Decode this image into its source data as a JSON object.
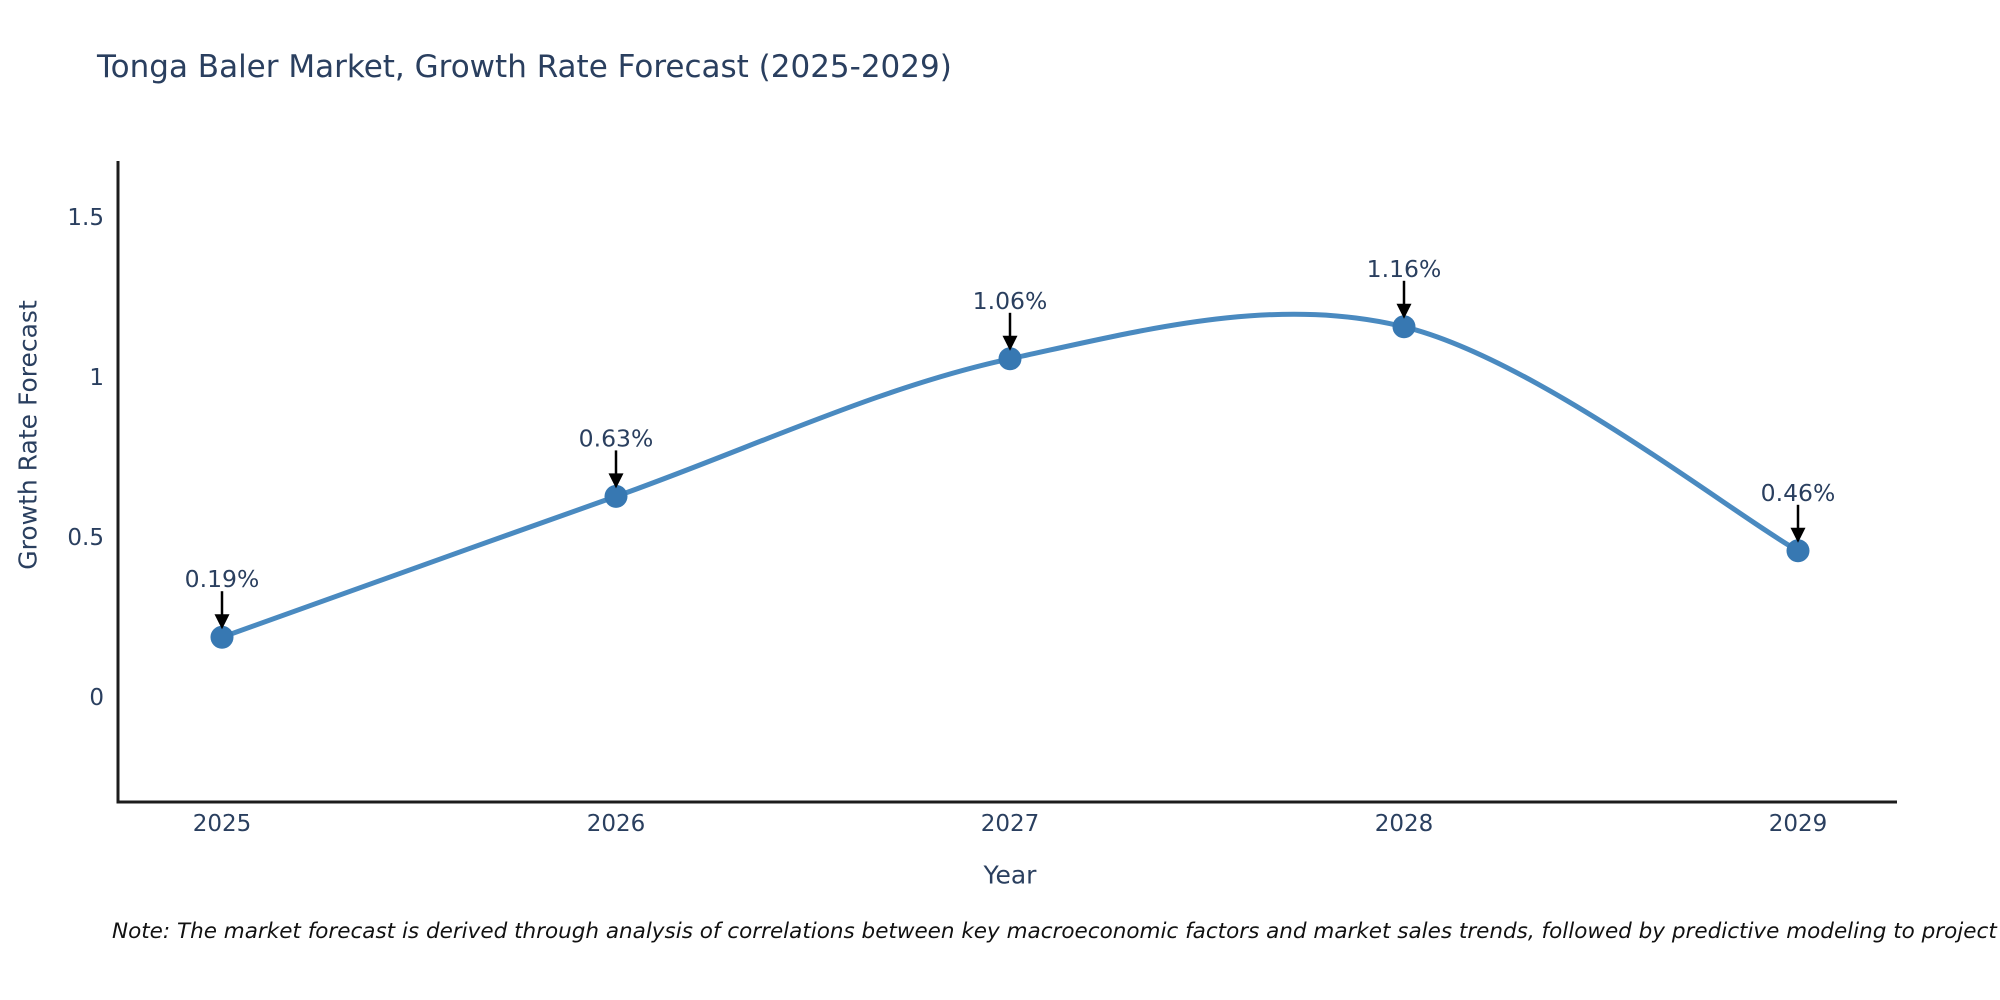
{
  "note": "Note: The market forecast is derived through analysis of correlations between key macroeconomic factors and market sales trends, followed by predictive modeling to project future sales",
  "chart_data": {
    "type": "line",
    "title": "Tonga Baler Market, Growth Rate Forecast (2025-2029)",
    "xlabel": "Year",
    "ylabel": "Growth Rate Forecast",
    "categories": [
      "2025",
      "2026",
      "2027",
      "2028",
      "2029"
    ],
    "series": [
      {
        "name": "Growth Rate Forecast",
        "values": [
          0.19,
          0.63,
          1.06,
          1.16,
          0.46
        ]
      }
    ],
    "annotations": [
      "0.19%",
      "0.63%",
      "1.06%",
      "1.16%",
      "0.46%"
    ],
    "y_ticks": [
      0,
      0.5,
      1,
      1.5
    ],
    "y_tick_labels": [
      "0",
      "0.5",
      "1",
      "1.5"
    ],
    "ylim": [
      -0.33,
      1.79
    ],
    "line_shape": "spline",
    "grid": false,
    "legend_position": "none",
    "colors": {
      "line": "#4a8ac0",
      "marker": "#3778b2",
      "axis": "#1c1c1c",
      "text": "#2a3f5f",
      "arrow": "#000000",
      "background": "#ffffff"
    }
  }
}
